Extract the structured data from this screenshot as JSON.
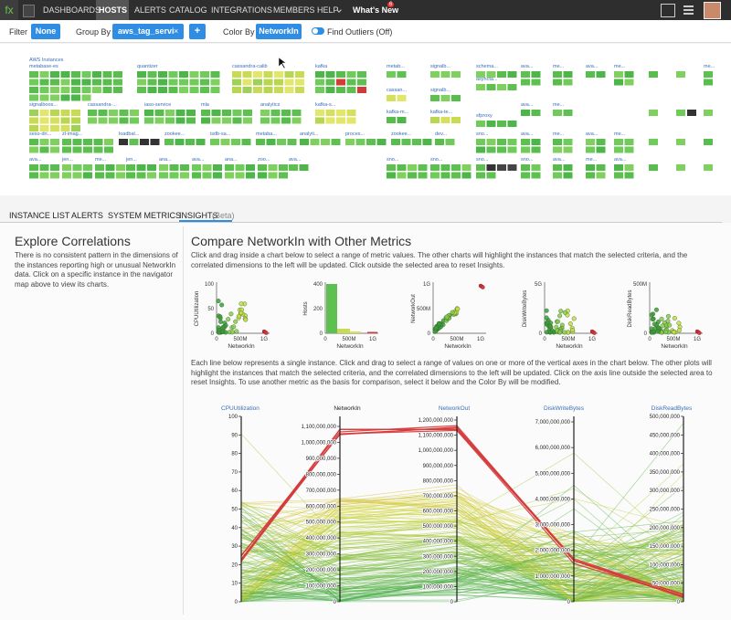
{
  "nav": {
    "logo": "fx",
    "items": [
      "DASHBOARDS",
      "HOSTS",
      "ALERTS",
      "CATALOG",
      "INTEGRATIONS",
      "MEMBERS",
      "HELP"
    ],
    "whats_new": "What's New",
    "badge": "6"
  },
  "toolbar": {
    "filter_label": "Filter",
    "filter_value": "None",
    "group_label": "Group By",
    "group_value": "aws_tag_service",
    "remove": "×",
    "add": "+",
    "color_label": "Color By",
    "color_value": "NetworkIn",
    "outliers": "Find Outliers (Off)"
  },
  "host_map": {
    "title": "AWS Instances",
    "groups": [
      "metabase-es",
      "quantizer",
      "cassandra-calib",
      "kafka",
      "metab...",
      "signalb...",
      "schema...",
      "ava...",
      "me...",
      "ava...",
      "me...",
      "cassan...",
      "signalb...",
      "asyncta...",
      "signalboos...",
      "cassandra-...",
      "iaso-service",
      "mla",
      "analytics",
      "kafka-s...",
      "kafka-m...",
      "kafka-te...",
      "sfproxy",
      "ava...",
      "me...",
      "seso-dri...",
      "zl-imag...",
      "loadbal...",
      "zookee...",
      "isdb-sa...",
      "metaba...",
      "analyti...",
      "proces...",
      "zookee...",
      "dev...",
      "sno...",
      "ava...",
      "me...",
      "ava...",
      "me...",
      "ava...",
      "jen...",
      "me...",
      "jen...",
      "ana...",
      "ava...",
      "ana...",
      "zoo...",
      "ava...",
      "sno...",
      "sno...",
      "sno...",
      "sno...",
      "ava...",
      "me...",
      "ava...",
      "me..."
    ]
  },
  "tabs": {
    "items": [
      "INSTANCE LIST",
      "ALERTS",
      "SYSTEM METRICS",
      "INSIGHTS"
    ],
    "beta": "(Beta)"
  },
  "left": {
    "title": "Explore Correlations",
    "text": "There is no consistent pattern in the dimensions of the instances reporting high or unusual NetworkIn data. Click on a specific instance in the navigator map above to view its charts."
  },
  "right": {
    "title": "Compare NetworkIn with Other Metrics",
    "intro": "Click and drag inside a chart below to select a range of metric values. The other charts will highlight the instances that match the selected criteria, and the correlated dimensions to the left will be updated. Click outside the selected area to reset Insights.",
    "charts": [
      {
        "ylabel": "CPUUtilization",
        "yticks": [
          "0",
          "50",
          "100"
        ],
        "xticks": [
          "0",
          "500M",
          "1G"
        ],
        "xlabel": "NetworkIn"
      },
      {
        "ylabel": "Hosts",
        "yticks": [
          "0",
          "200",
          "400"
        ],
        "xticks": [
          "0",
          "500M",
          "1G"
        ],
        "xlabel": "NetworkIn"
      },
      {
        "ylabel": "NetworkOut",
        "yticks": [
          "0",
          "500M",
          "1G"
        ],
        "xticks": [
          "0",
          "500M",
          "1G"
        ],
        "xlabel": "NetworkIn"
      },
      {
        "ylabel": "DiskWriteBytes",
        "yticks": [
          "0",
          "5G"
        ],
        "xticks": [
          "0",
          "500M",
          "1G"
        ],
        "xlabel": "NetworkIn"
      },
      {
        "ylabel": "DiskReadBytes",
        "yticks": [
          "0",
          "500M"
        ],
        "xticks": [
          "0",
          "500M",
          "1G"
        ],
        "xlabel": "NetworkIn"
      }
    ],
    "note": "Each line below represents a single instance. Click and drag to select a range of values on one or more of the vertical axes in the chart below. The other plots will highlight the instances that match the selected criteria, and the correlated dimensions to the left will be updated. Click on the axis line outside the selected area to reset Insights. To use another metric as the basis for comparison, select it below and the Color By will be modified.",
    "parallel": [
      {
        "name": "CPUUtilization",
        "ticks": [
          "0",
          "10",
          "20",
          "30",
          "40",
          "50",
          "60",
          "70",
          "80",
          "90",
          "100"
        ]
      },
      {
        "name": "NetworkIn",
        "ticks": [
          "0",
          "100,000,000",
          "200,000,000",
          "300,000,000",
          "400,000,000",
          "500,000,000",
          "600,000,000",
          "700,000,000",
          "800,000,000",
          "900,000,000",
          "1,000,000,000",
          "1,100,000,000"
        ]
      },
      {
        "name": "NetworkOut",
        "ticks": [
          "0",
          "100,000,000",
          "200,000,000",
          "300,000,000",
          "400,000,000",
          "500,000,000",
          "600,000,000",
          "700,000,000",
          "800,000,000",
          "900,000,000",
          "1,000,000,000",
          "1,100,000,000",
          "1,200,000,000"
        ]
      },
      {
        "name": "DiskWriteBytes",
        "ticks": [
          "0",
          "1,000,000,000",
          "2,000,000,000",
          "3,000,000,000",
          "4,000,000,000",
          "5,000,000,000",
          "6,000,000,000",
          "7,000,000,000"
        ]
      },
      {
        "name": "DiskReadBytes",
        "ticks": [
          "0",
          "50,000,000",
          "100,000,000",
          "150,000,000",
          "200,000,000",
          "250,000,000",
          "300,000,000",
          "350,000,000",
          "400,000,000",
          "450,000,000",
          "500,000,000"
        ]
      }
    ]
  }
}
